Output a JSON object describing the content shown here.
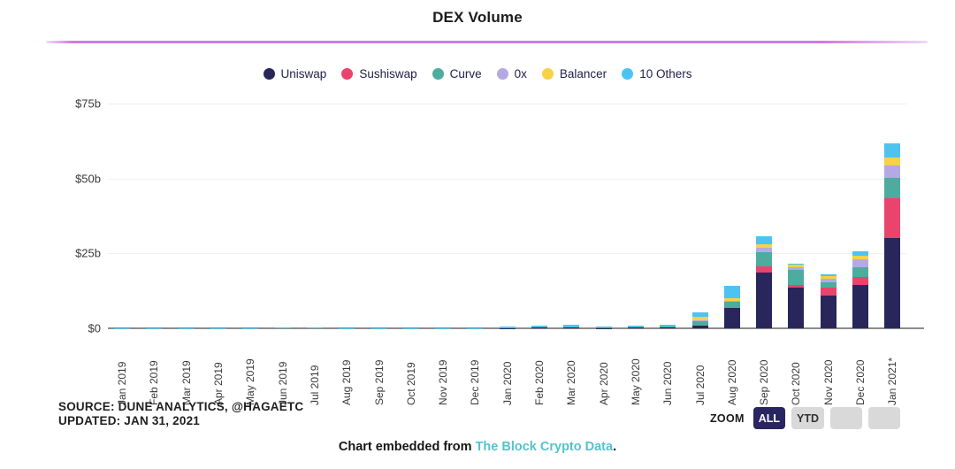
{
  "title": "DEX Volume",
  "chart_data": {
    "type": "bar",
    "stacked": true,
    "unit": "billions USD",
    "title": "DEX Volume",
    "legend_position": "top",
    "grid": true,
    "ylim": [
      0,
      75
    ],
    "ytick_values": [
      0,
      25,
      50,
      75
    ],
    "ytick_labels": [
      "$0",
      "$25b",
      "$50b",
      "$75b"
    ],
    "categories": [
      "Jan 2019",
      "Feb 2019",
      "Mar 2019",
      "Apr 2019",
      "May 2019",
      "Jun 2019",
      "Jul 2019",
      "Aug 2019",
      "Sep 2019",
      "Oct 2019",
      "Nov 2019",
      "Dec 2019",
      "Jan 2020",
      "Feb 2020",
      "Mar 2020",
      "Apr 2020",
      "May 2020",
      "Jun 2020",
      "Jul 2020",
      "Aug 2020",
      "Sep 2020",
      "Oct 2020",
      "Nov 2020",
      "Dec 2020",
      "Jan 2021*"
    ],
    "series": [
      {
        "name": "Uniswap",
        "color": "#29265c",
        "values": [
          0,
          0,
          0,
          0,
          0,
          0,
          0,
          0,
          0,
          0,
          0,
          0,
          0.1,
          0.2,
          0.3,
          0.1,
          0.3,
          0.4,
          0.8,
          6.9,
          18.5,
          13.5,
          11.0,
          14.6,
          30.0
        ]
      },
      {
        "name": "Sushiswap",
        "color": "#e9446d",
        "values": [
          0,
          0,
          0,
          0,
          0,
          0,
          0,
          0,
          0,
          0,
          0,
          0,
          0,
          0,
          0,
          0,
          0,
          0,
          0,
          0,
          2.1,
          0.9,
          2.7,
          2.5,
          13.5
        ]
      },
      {
        "name": "Curve",
        "color": "#4dac9d",
        "values": [
          0,
          0,
          0,
          0,
          0,
          0,
          0,
          0,
          0,
          0,
          0,
          0,
          0,
          0,
          0.1,
          0.1,
          0.1,
          0.2,
          1.5,
          1.9,
          4.8,
          5.1,
          1.7,
          3.3,
          6.6
        ]
      },
      {
        "name": "0x",
        "color": "#b5a9e5",
        "values": [
          0,
          0,
          0,
          0,
          0,
          0,
          0,
          0,
          0,
          0,
          0,
          0,
          0,
          0,
          0,
          0,
          0,
          0,
          0.3,
          0.3,
          1.4,
          1.0,
          1.0,
          2.5,
          4.3
        ]
      },
      {
        "name": "Balancer",
        "color": "#f7d148",
        "values": [
          0,
          0,
          0,
          0,
          0,
          0,
          0,
          0,
          0,
          0,
          0,
          0,
          0,
          0,
          0,
          0,
          0,
          0,
          1.2,
          1.0,
          1.3,
          0.7,
          1.0,
          1.2,
          2.7
        ]
      },
      {
        "name": "10 Others",
        "color": "#4ec3f2",
        "values": [
          0.05,
          0.05,
          0.05,
          0.05,
          0.15,
          0.2,
          0.2,
          0.1,
          0.15,
          0.15,
          0.15,
          0.15,
          0.4,
          0.8,
          0.8,
          0.3,
          0.5,
          0.6,
          1.5,
          4.1,
          2.7,
          0.5,
          0.7,
          1.5,
          4.5
        ]
      }
    ]
  },
  "footer": {
    "source_line1": "SOURCE: DUNE ANALYTICS, @HAGAETC",
    "source_line2": "UPDATED: JAN 31, 2021",
    "zoom_label": "ZOOM",
    "zoom_buttons": [
      {
        "label": "ALL",
        "selected": true
      },
      {
        "label": "YTD",
        "selected": false
      },
      {
        "label": "",
        "selected": false
      },
      {
        "label": "",
        "selected": false
      }
    ],
    "caption_prefix": "Chart embedded from ",
    "caption_link": "The Block Crypto Data",
    "caption_suffix": "."
  },
  "colors": {
    "divider": "#cb7ce6",
    "baseline": "#8c8c8c",
    "gridline": "#f0f0f0",
    "zoom_selected_bg": "#292562",
    "zoom_button_bg": "#d9d9d9",
    "caption_link": "#55c2cf"
  }
}
